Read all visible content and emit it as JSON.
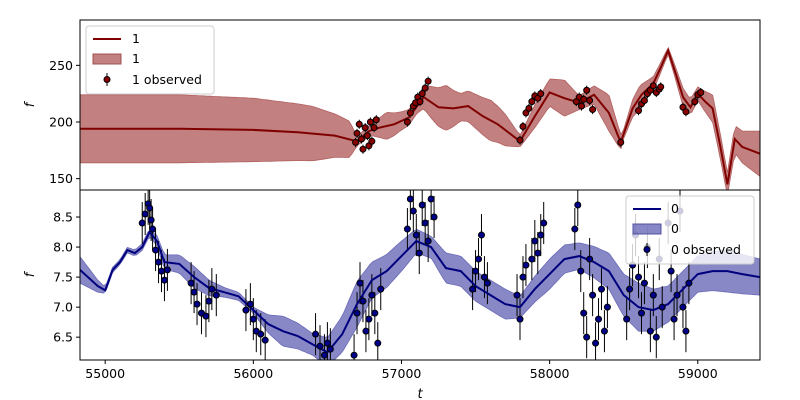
{
  "chart_data": [
    {
      "type": "line",
      "panel": "top",
      "title": "",
      "xlabel": "",
      "ylabel": "f",
      "xlim": [
        54830,
        59420
      ],
      "ylim": [
        140,
        290
      ],
      "yticks": [
        150,
        200,
        250
      ],
      "xticks": [],
      "grid": false,
      "legend_position": "top-left",
      "legend": [
        {
          "label": "1",
          "kind": "line"
        },
        {
          "label": "1",
          "kind": "band"
        },
        {
          "label": "1 observed",
          "kind": "errorbar"
        }
      ],
      "colors": {
        "line": "#800000",
        "band": "#b36060",
        "marker": "#8b0000"
      },
      "mean": {
        "x": [
          54830,
          55000,
          55500,
          56000,
          56300,
          56550,
          56700,
          56780,
          56850,
          56950,
          57050,
          57150,
          57250,
          57350,
          57450,
          57550,
          57650,
          57800,
          57900,
          58000,
          58100,
          58200,
          58300,
          58400,
          58480,
          58560,
          58620,
          58700,
          58750,
          58800,
          58850,
          58900,
          58950,
          59000,
          59050,
          59100,
          59150,
          59200,
          59250,
          59300,
          59420
        ],
        "y": [
          194,
          194,
          194,
          193,
          191,
          188,
          183,
          192,
          195,
          198,
          204,
          222,
          213,
          212,
          214,
          205,
          198,
          183,
          205,
          226,
          221,
          217,
          224,
          208,
          182,
          212,
          224,
          234,
          248,
          263,
          243,
          222,
          213,
          225,
          218,
          212,
          180,
          145,
          185,
          178,
          172
        ]
      },
      "band_halfwidth": {
        "x": [
          54830,
          55500,
          56000,
          56400,
          56650,
          56700,
          56800,
          56900,
          57000,
          57100,
          57200,
          57300,
          57400,
          57500,
          57600,
          57700,
          57800,
          57900,
          58000,
          58100,
          58200,
          58300,
          58400,
          58500,
          58600,
          58700,
          58800,
          58900,
          59000,
          59100,
          59200,
          59300,
          59420
        ],
        "y": [
          30,
          30,
          28,
          24,
          16,
          4,
          5,
          12,
          8,
          6,
          14,
          20,
          12,
          15,
          18,
          14,
          5,
          10,
          12,
          16,
          6,
          8,
          16,
          4,
          10,
          6,
          3,
          8,
          6,
          12,
          10,
          14,
          20
        ]
      },
      "observed": {
        "x": [
          56690,
          56700,
          56715,
          56730,
          56740,
          56755,
          56770,
          56780,
          56790,
          56800,
          56815,
          56830,
          57040,
          57060,
          57080,
          57095,
          57110,
          57125,
          57140,
          57160,
          57180,
          57800,
          57820,
          57840,
          57860,
          57880,
          57900,
          57920,
          57940,
          58180,
          58200,
          58215,
          58230,
          58250,
          58270,
          58290,
          58480,
          58600,
          58620,
          58640,
          58660,
          58680,
          58700,
          58720,
          58740,
          58750,
          58900,
          58920,
          58980,
          59000,
          59020
        ],
        "y": [
          182,
          190,
          198,
          185,
          176,
          195,
          188,
          179,
          200,
          183,
          195,
          202,
          200,
          208,
          214,
          217,
          222,
          218,
          225,
          230,
          236,
          184,
          196,
          208,
          212,
          218,
          223,
          221,
          225,
          218,
          222,
          214,
          220,
          228,
          219,
          211,
          182,
          210,
          216,
          219,
          225,
          228,
          232,
          226,
          229,
          231,
          213,
          209,
          218,
          224,
          226
        ]
      }
    },
    {
      "type": "line",
      "panel": "bottom",
      "title": "",
      "xlabel": "t",
      "ylabel": "f",
      "xlim": [
        54830,
        59420
      ],
      "ylim": [
        6.12,
        8.95
      ],
      "yticks": [
        6.5,
        7.0,
        7.5,
        8.0,
        8.5
      ],
      "xticks": [
        55000,
        56000,
        57000,
        58000,
        59000
      ],
      "grid": false,
      "legend_position": "top-right",
      "legend": [
        {
          "label": "0",
          "kind": "line"
        },
        {
          "label": "0",
          "kind": "band"
        },
        {
          "label": "0 observed",
          "kind": "errorbar"
        }
      ],
      "colors": {
        "line": "#00007f",
        "band": "#6a6ab8",
        "marker": "#00008b"
      },
      "mean": {
        "x": [
          54830,
          54950,
          55000,
          55050,
          55100,
          55150,
          55200,
          55250,
          55300,
          55350,
          55400,
          55500,
          55600,
          55700,
          55800,
          55900,
          56000,
          56100,
          56200,
          56300,
          56400,
          56500,
          56600,
          56700,
          56800,
          56900,
          57000,
          57100,
          57200,
          57300,
          57400,
          57500,
          57600,
          57700,
          57800,
          57900,
          58000,
          58100,
          58200,
          58300,
          58400,
          58500,
          58600,
          58700,
          58800,
          58900,
          59000,
          59100,
          59200,
          59300,
          59420
        ],
        "y": [
          7.62,
          7.35,
          7.28,
          7.62,
          7.75,
          7.95,
          7.9,
          8.0,
          8.25,
          8.1,
          7.75,
          7.72,
          7.5,
          7.32,
          7.25,
          7.18,
          6.95,
          6.72,
          6.6,
          6.52,
          6.38,
          6.25,
          6.55,
          7.05,
          7.45,
          7.6,
          7.85,
          8.1,
          8.0,
          7.65,
          7.6,
          7.35,
          7.2,
          7.05,
          7.0,
          7.3,
          7.55,
          7.8,
          7.85,
          7.75,
          7.6,
          7.2,
          7.0,
          6.95,
          7.05,
          7.3,
          7.55,
          7.6,
          7.6,
          7.55,
          7.5
        ]
      },
      "band_halfwidth": {
        "x": [
          54830,
          55000,
          55100,
          55300,
          55400,
          55600,
          55800,
          56000,
          56200,
          56400,
          56600,
          56700,
          56800,
          57000,
          57100,
          57200,
          57300,
          57500,
          57700,
          57800,
          58000,
          58200,
          58400,
          58600,
          58800,
          59000,
          59200,
          59420
        ],
        "y": [
          0.22,
          0.05,
          0.04,
          0.06,
          0.12,
          0.18,
          0.08,
          0.05,
          0.25,
          0.18,
          0.3,
          0.38,
          0.3,
          0.25,
          0.2,
          0.18,
          0.25,
          0.25,
          0.25,
          0.18,
          0.25,
          0.22,
          0.3,
          0.4,
          0.3,
          0.3,
          0.35,
          0.3
        ]
      },
      "observed": {
        "x": [
          55250,
          55270,
          55290,
          55300,
          55310,
          55320,
          55340,
          55360,
          55380,
          55400,
          55420,
          55580,
          55600,
          55620,
          55650,
          55680,
          55700,
          55720,
          55750,
          55950,
          55980,
          56000,
          56020,
          56050,
          56080,
          56420,
          56450,
          56480,
          56500,
          56520,
          56680,
          56700,
          56720,
          56740,
          56760,
          56780,
          56800,
          56820,
          56840,
          56860,
          57040,
          57060,
          57080,
          57100,
          57120,
          57140,
          57160,
          57180,
          57200,
          57220,
          57480,
          57500,
          57520,
          57540,
          57560,
          57580,
          57780,
          57800,
          57820,
          57840,
          57880,
          57900,
          57920,
          57940,
          57960,
          58170,
          58190,
          58210,
          58230,
          58250,
          58270,
          58290,
          58310,
          58330,
          58350,
          58370,
          58390,
          58520,
          58540,
          58560,
          58580,
          58600,
          58620,
          58640,
          58660,
          58680,
          58700,
          58720,
          58740,
          58760,
          58800,
          58820,
          58840,
          58860,
          58880,
          58900,
          58920,
          58940
        ],
        "y": [
          8.4,
          8.55,
          8.72,
          8.65,
          8.45,
          8.3,
          7.95,
          7.75,
          7.6,
          7.45,
          7.62,
          7.4,
          7.25,
          7.05,
          6.9,
          6.85,
          7.1,
          7.3,
          7.2,
          6.95,
          7.05,
          6.8,
          6.6,
          6.55,
          6.45,
          6.55,
          6.35,
          6.2,
          6.4,
          6.3,
          6.2,
          6.9,
          7.4,
          7.1,
          6.6,
          6.8,
          7.2,
          6.9,
          6.4,
          7.3,
          8.3,
          8.8,
          8.6,
          8.2,
          7.9,
          8.7,
          8.4,
          8.1,
          8.8,
          8.5,
          7.3,
          7.6,
          7.8,
          8.2,
          7.5,
          7.4,
          7.2,
          6.8,
          7.5,
          7.7,
          7.8,
          8.1,
          7.9,
          8.2,
          8.4,
          8.3,
          8.7,
          7.6,
          6.9,
          6.5,
          7.8,
          7.2,
          6.4,
          6.8,
          7.3,
          6.6,
          7.0,
          6.8,
          7.3,
          7.7,
          8.2,
          7.5,
          6.9,
          7.4,
          8.0,
          6.6,
          7.2,
          6.5,
          7.8,
          7.0,
          8.4,
          7.6,
          6.8,
          7.2,
          8.6,
          7.0,
          6.6,
          7.4
        ]
      }
    }
  ]
}
